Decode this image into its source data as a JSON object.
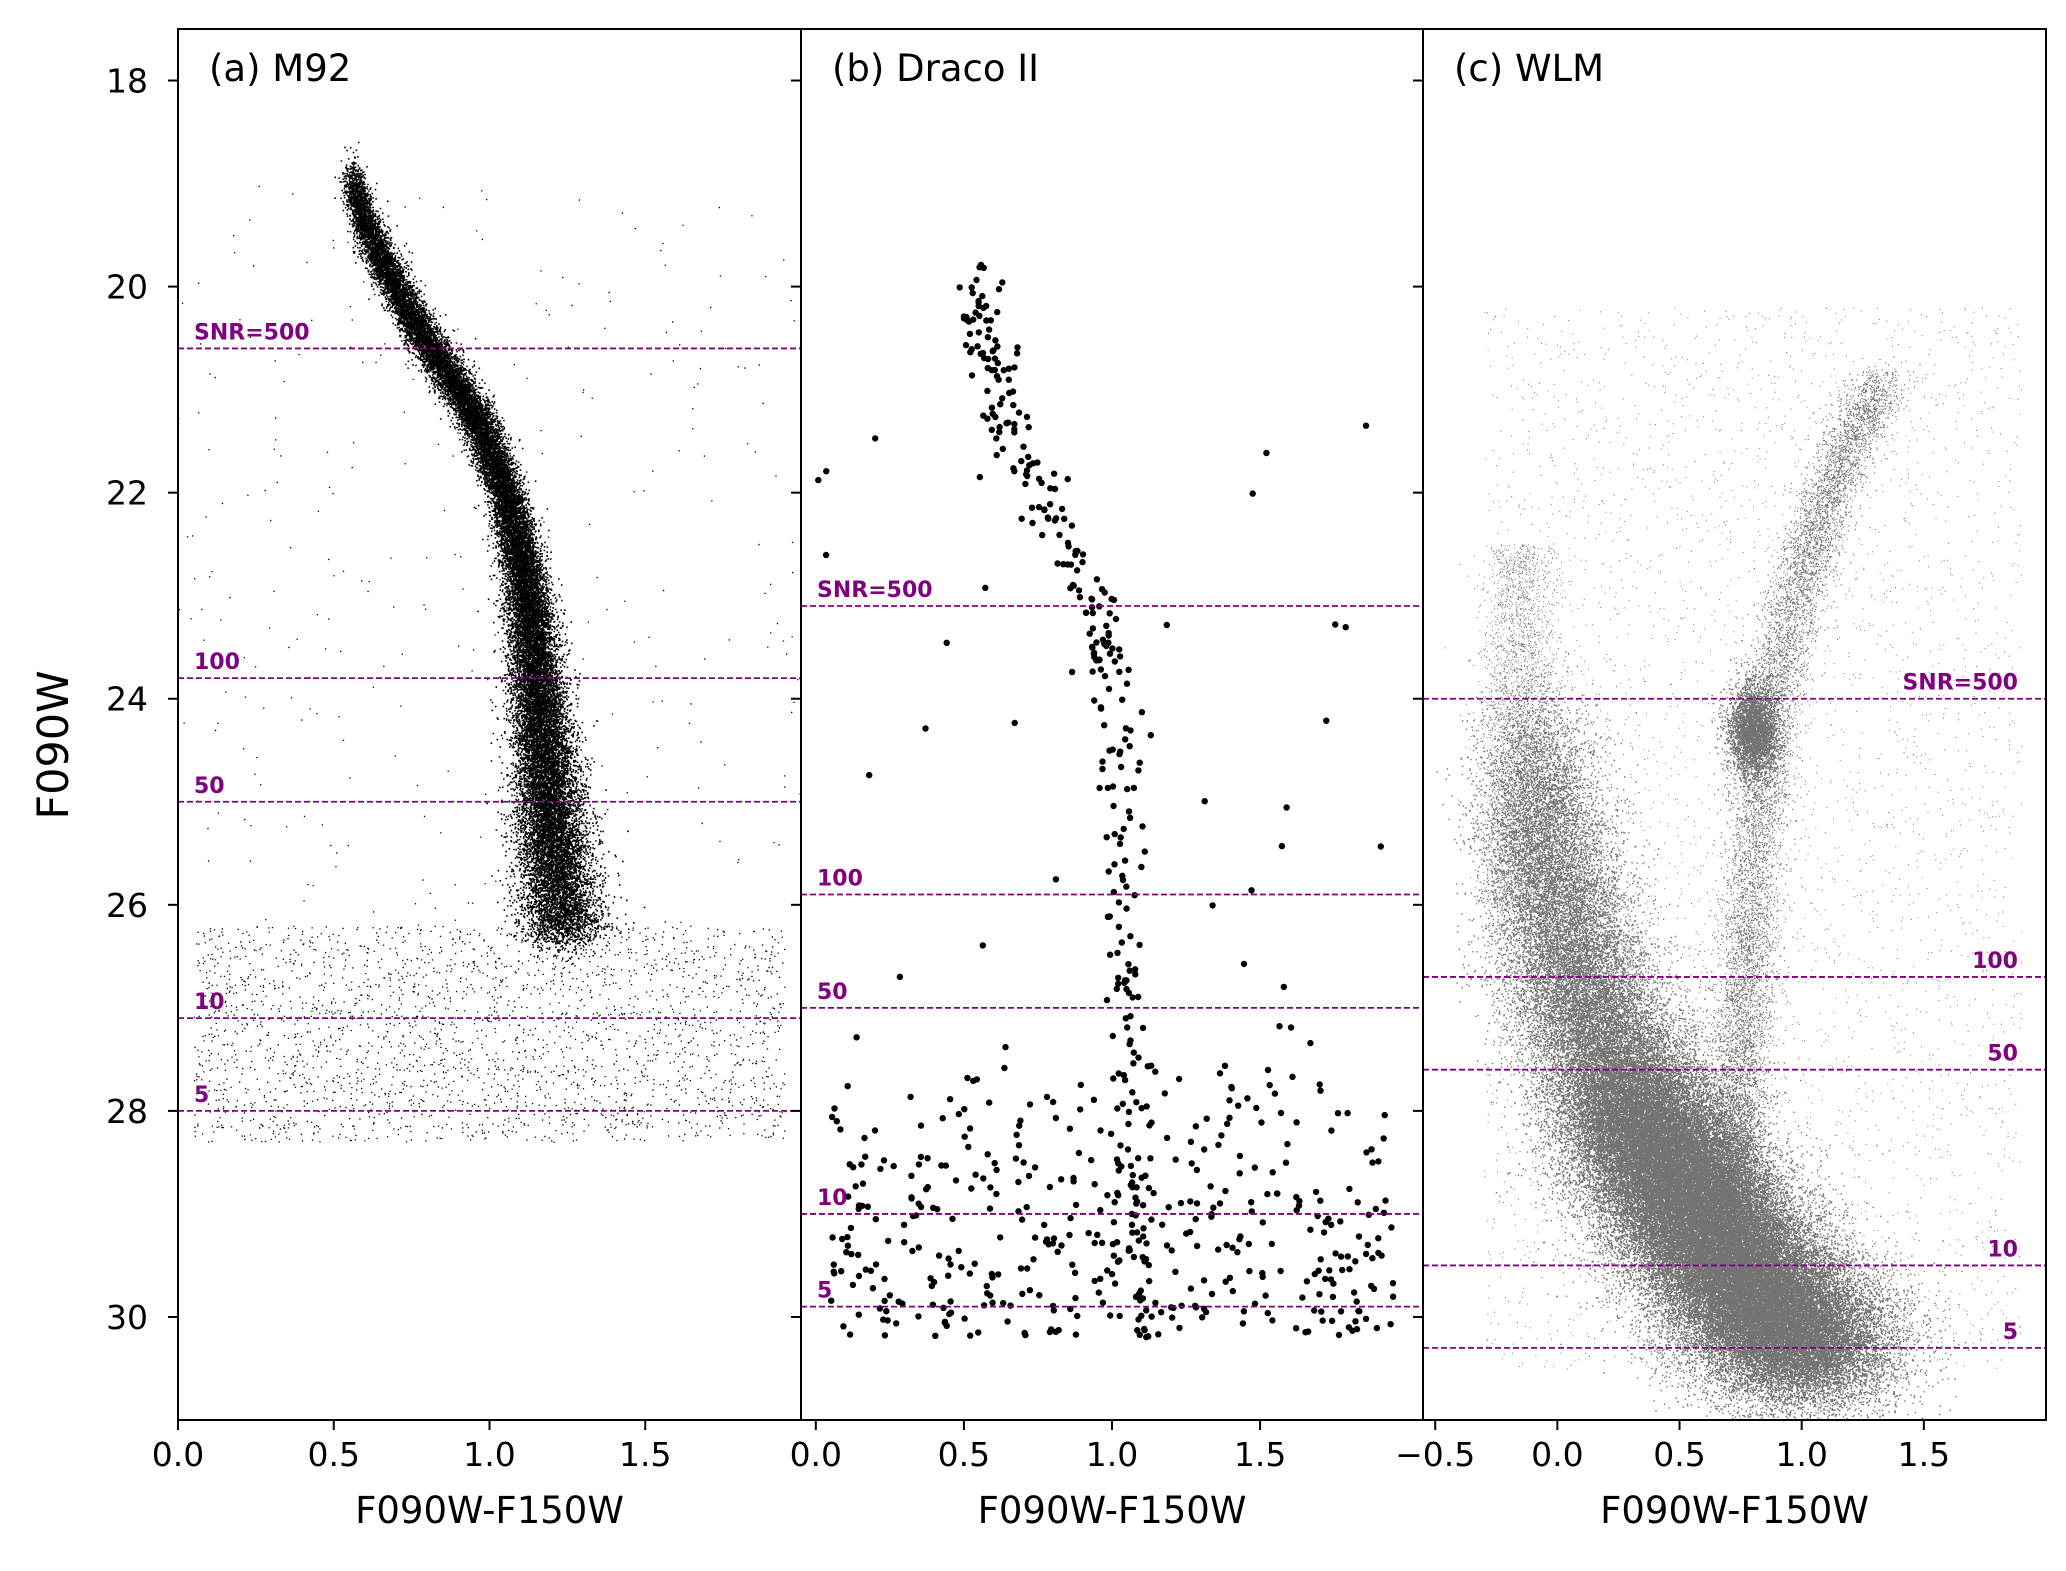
{
  "figure": {
    "ylabel": "F090W",
    "ytick_labels": [
      "18",
      "20",
      "22",
      "24",
      "26",
      "28",
      "30"
    ],
    "snr_line_color": "#800080",
    "point_color": "#000000"
  },
  "chart_data": [
    {
      "type": "scatter",
      "panel_label": "(a) M92",
      "xlabel": "F090W-F150W",
      "ylabel": "F090W",
      "xlim": [
        0.0,
        2.0
      ],
      "ylim": [
        31.0,
        17.5
      ],
      "y_inverted": true,
      "xticks": [
        "0.0",
        "0.5",
        "1.0",
        "1.5"
      ],
      "yticks": [
        18,
        20,
        22,
        24,
        26,
        28,
        30
      ],
      "snr_lines": [
        {
          "label": "SNR=500",
          "mag": 20.6
        },
        {
          "label": "100",
          "mag": 23.8
        },
        {
          "label": "50",
          "mag": 25.0
        },
        {
          "label": "10",
          "mag": 27.1
        },
        {
          "label": "5",
          "mag": 28.0
        }
      ],
      "snr_label_align": "left",
      "sequence": [
        [
          0.55,
          18.9
        ],
        [
          0.6,
          19.4
        ],
        [
          0.68,
          19.9
        ],
        [
          0.77,
          20.4
        ],
        [
          0.88,
          20.9
        ],
        [
          0.98,
          21.4
        ],
        [
          1.05,
          22.0
        ],
        [
          1.1,
          22.6
        ],
        [
          1.13,
          23.2
        ],
        [
          1.15,
          23.8
        ],
        [
          1.17,
          24.4
        ],
        [
          1.19,
          25.0
        ],
        [
          1.21,
          25.6
        ],
        [
          1.24,
          26.3
        ]
      ]
    },
    {
      "type": "scatter",
      "panel_label": "(b) Draco II",
      "xlabel": "F090W-F150W",
      "xlim": [
        -0.05,
        2.05
      ],
      "ylim": [
        31.0,
        17.5
      ],
      "y_inverted": true,
      "xticks": [
        "0.0",
        "0.5",
        "1.0",
        "1.5"
      ],
      "snr_lines": [
        {
          "label": "SNR=500",
          "mag": 23.1
        },
        {
          "label": "100",
          "mag": 25.9
        },
        {
          "label": "50",
          "mag": 27.0
        },
        {
          "label": "10",
          "mag": 29.0
        },
        {
          "label": "5",
          "mag": 29.9
        }
      ],
      "snr_label_align": "left",
      "sequence": [
        [
          0.53,
          20.0
        ],
        [
          0.57,
          20.6
        ],
        [
          0.63,
          21.2
        ],
        [
          0.7,
          21.7
        ],
        [
          0.78,
          22.2
        ],
        [
          0.88,
          22.7
        ],
        [
          0.97,
          23.2
        ],
        [
          1.0,
          23.8
        ],
        [
          1.02,
          24.6
        ],
        [
          1.04,
          25.5
        ],
        [
          1.05,
          26.4
        ],
        [
          1.06,
          27.3
        ],
        [
          1.07,
          28.2
        ],
        [
          1.08,
          29.2
        ],
        [
          1.1,
          30.1
        ]
      ]
    },
    {
      "type": "scatter",
      "panel_label": "(c) WLM",
      "xlabel": "F090W-F150W",
      "xlim": [
        -0.55,
        2.0
      ],
      "ylim": [
        31.0,
        17.5
      ],
      "y_inverted": true,
      "xticks": [
        "−0.5",
        "0.0",
        "0.5",
        "1.0",
        "1.5"
      ],
      "snr_lines": [
        {
          "label": "SNR=500",
          "mag": 24.0
        },
        {
          "label": "100",
          "mag": 26.7
        },
        {
          "label": "50",
          "mag": 27.6
        },
        {
          "label": "10",
          "mag": 29.5
        },
        {
          "label": "5",
          "mag": 30.3
        }
      ],
      "snr_label_align": "right",
      "red_clump": [
        0.8,
        24.3
      ],
      "main_sequence": [
        [
          -0.1,
          24.2
        ],
        [
          -0.05,
          25.4
        ],
        [
          0.05,
          26.5
        ],
        [
          0.2,
          27.4
        ],
        [
          0.35,
          28.1
        ],
        [
          0.5,
          28.7
        ],
        [
          0.65,
          29.3
        ],
        [
          0.85,
          29.9
        ],
        [
          1.05,
          30.4
        ]
      ],
      "rgb": [
        [
          0.72,
          29.0
        ],
        [
          0.75,
          27.5
        ],
        [
          0.78,
          26.3
        ],
        [
          0.82,
          25.0
        ],
        [
          0.88,
          24.0
        ],
        [
          0.98,
          23.0
        ],
        [
          1.08,
          22.2
        ],
        [
          1.2,
          21.5
        ],
        [
          1.32,
          20.9
        ]
      ]
    }
  ]
}
